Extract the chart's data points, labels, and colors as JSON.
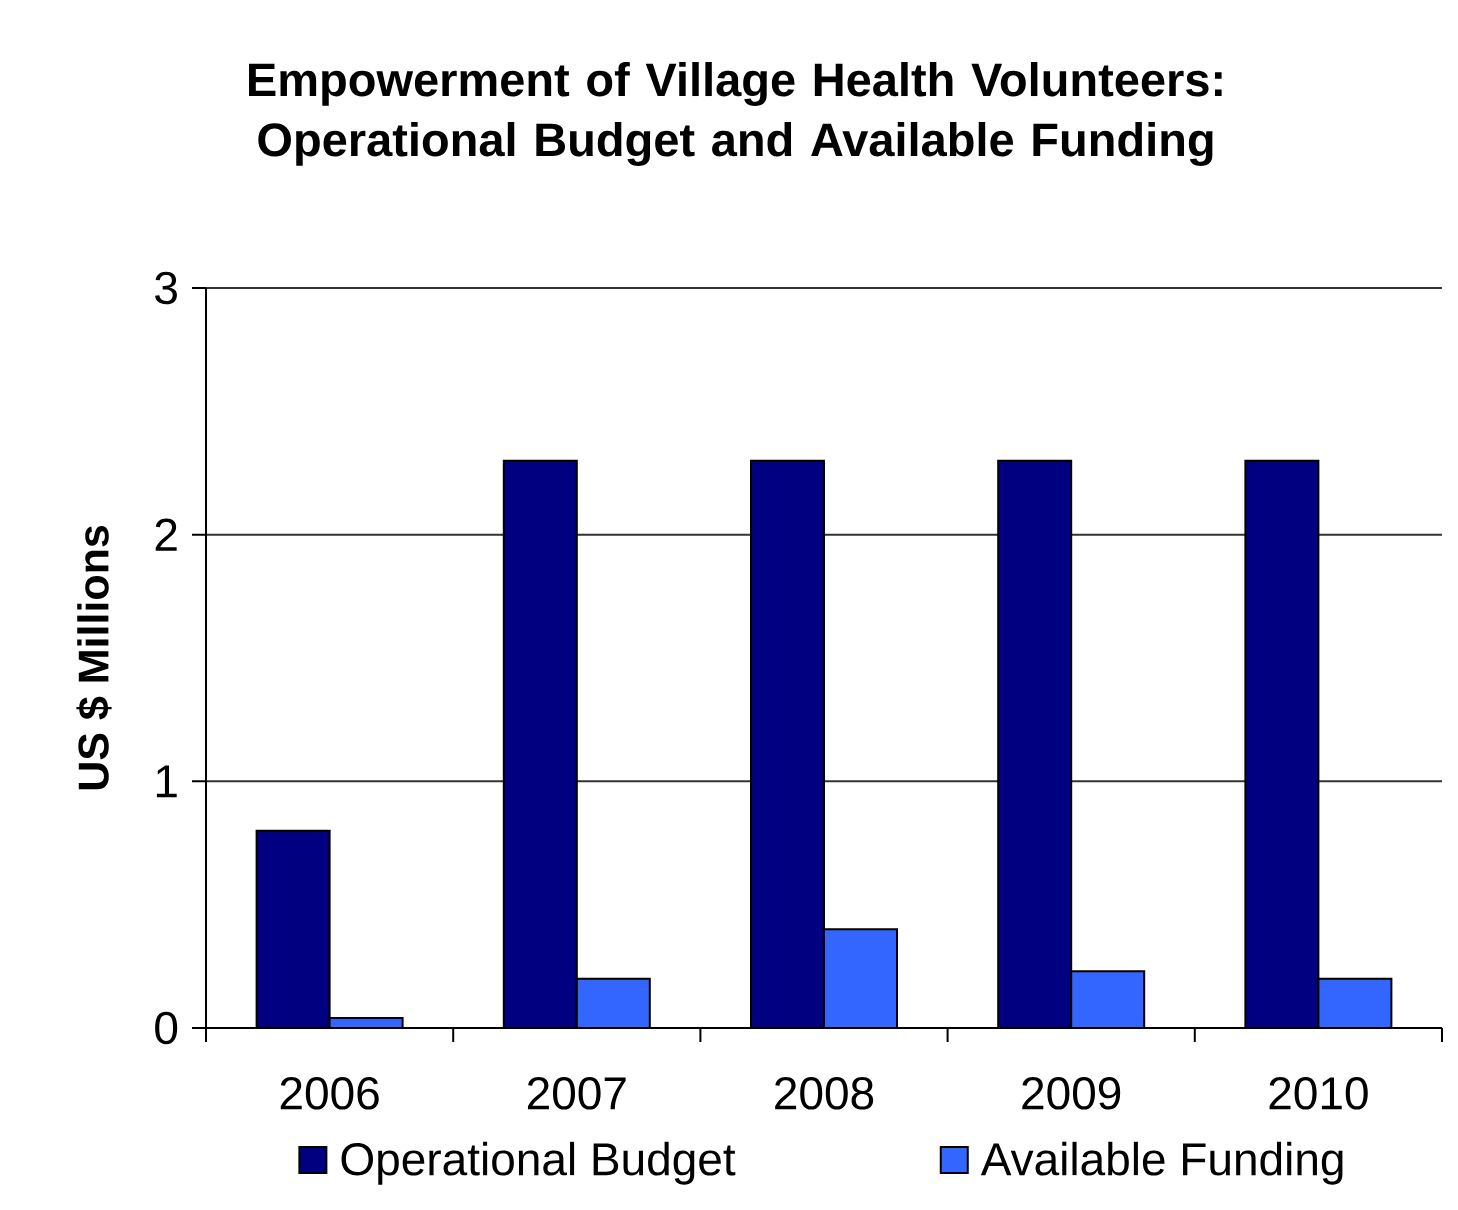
{
  "chart_data": {
    "type": "bar",
    "title": "Empowerment of Village Health Volunteers: Operational Budget and Available Funding",
    "ylabel": "US $ Millions",
    "categories": [
      "2006",
      "2007",
      "2008",
      "2009",
      "2010"
    ],
    "series": [
      {
        "name": "Operational Budget",
        "color": "#000080",
        "values": [
          0.8,
          2.3,
          2.3,
          2.3,
          2.3
        ]
      },
      {
        "name": "Available Funding",
        "color": "#3366ff",
        "values": [
          0.04,
          0.2,
          0.4,
          0.23,
          0.2
        ]
      }
    ],
    "ylim": [
      0,
      3
    ],
    "yticks": [
      0,
      1,
      2,
      3
    ],
    "grid": "y",
    "legend": "bottom"
  }
}
